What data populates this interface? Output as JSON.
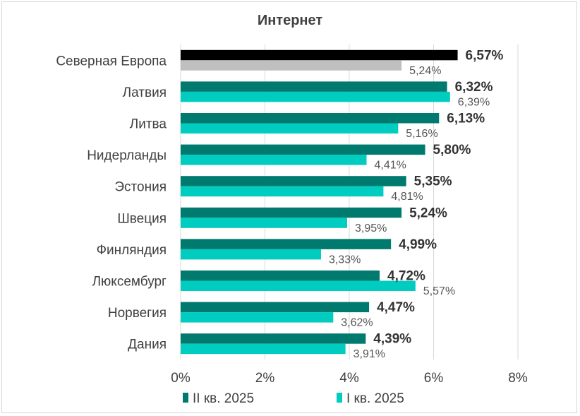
{
  "chart_data": {
    "type": "bar",
    "orientation": "horizontal",
    "title": "Интернет",
    "categories": [
      "Северная Европа",
      "Латвия",
      "Литва",
      "Нидерланды",
      "Эстония",
      "Швеция",
      "Финляндия",
      "Люксембург",
      "Норвегия",
      "Дания"
    ],
    "series": [
      {
        "name": "II кв. 2025",
        "values": [
          6.57,
          6.32,
          6.13,
          5.8,
          5.35,
          5.24,
          4.99,
          4.72,
          4.47,
          4.39
        ],
        "labels": [
          "6,57%",
          "6,32%",
          "6,13%",
          "5,80%",
          "5,35%",
          "5,24%",
          "4,99%",
          "4,72%",
          "4,47%",
          "4,39%"
        ]
      },
      {
        "name": "I кв. 2025",
        "values": [
          5.24,
          6.39,
          5.16,
          4.41,
          4.81,
          3.95,
          3.33,
          5.57,
          3.62,
          3.91
        ],
        "labels": [
          "5,24%",
          "6,39%",
          "5,16%",
          "4,41%",
          "4,81%",
          "3,95%",
          "3,33%",
          "5,57%",
          "3,62%",
          "3,91%"
        ]
      }
    ],
    "xlim": [
      0,
      8
    ],
    "xticks": [
      "0%",
      "2%",
      "4%",
      "6%",
      "8%"
    ],
    "grid": true,
    "legend_position": "bottom",
    "colors": {
      "series_1": "#007a6e",
      "series_2": "#00ccc0",
      "highlight_series_1": "#000000",
      "highlight_series_2": "#bfbfbf",
      "grid": "#d9d9d9",
      "category_text": "#404040"
    }
  }
}
